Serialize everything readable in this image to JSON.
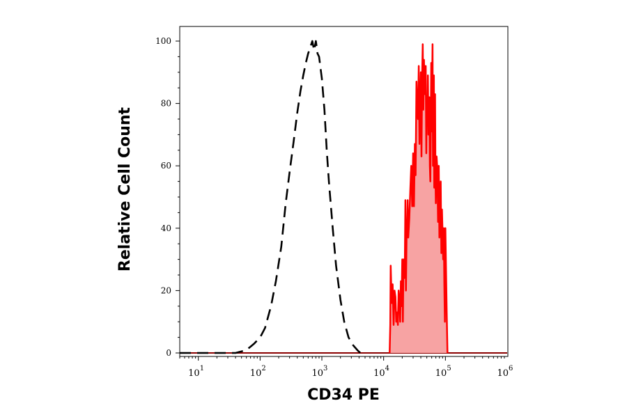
{
  "chart_data": {
    "type": "area",
    "xlabel": "CD34 PE",
    "ylabel": "Relative Cell Count",
    "x_scale": "log",
    "xlim": [
      5,
      1000000
    ],
    "ylim": [
      0,
      100
    ],
    "x_ticks": [
      {
        "value": 10,
        "base": "10",
        "exp": "1"
      },
      {
        "value": 100,
        "base": "10",
        "exp": "2"
      },
      {
        "value": 1000,
        "base": "10",
        "exp": "3"
      },
      {
        "value": 10000,
        "base": "10",
        "exp": "4"
      },
      {
        "value": 100000,
        "base": "10",
        "exp": "5"
      },
      {
        "value": 1000000,
        "base": "10",
        "exp": "6"
      }
    ],
    "y_ticks": [
      0,
      20,
      40,
      60,
      80,
      100
    ],
    "grid": false,
    "series": [
      {
        "style": "dashed-outline",
        "color": "#000000",
        "x": [
          5,
          40,
          50,
          60,
          70,
          80,
          100,
          120,
          150,
          180,
          220,
          260,
          300,
          350,
          400,
          450,
          500,
          550,
          600,
          650,
          700,
          750,
          800,
          850,
          900,
          1000,
          1100,
          1200,
          1300,
          1500,
          1700,
          2000,
          2300,
          2700,
          3200,
          3800,
          4200
        ],
        "y": [
          0,
          0,
          0.5,
          1,
          2,
          3,
          5,
          8,
          15,
          23,
          34,
          48,
          58,
          68,
          77,
          84,
          89,
          93,
          96,
          98,
          100,
          97,
          100,
          96,
          95,
          88,
          78,
          65,
          55,
          40,
          28,
          17,
          10,
          5,
          2.5,
          0.8,
          0
        ]
      },
      {
        "style": "filled",
        "color": "#ff0000",
        "fill": "#f7a3a3",
        "x": [
          12500,
          12800,
          13000,
          13500,
          14000,
          14500,
          15000,
          15500,
          16000,
          16500,
          17000,
          17500,
          18000,
          18500,
          19000,
          19500,
          20000,
          20500,
          21000,
          21500,
          22000,
          22500,
          23000,
          23500,
          24000,
          24500,
          25000,
          26000,
          27000,
          28000,
          29000,
          30000,
          31000,
          32000,
          33000,
          34000,
          35000,
          36000,
          37000,
          38000,
          39000,
          40000,
          41000,
          42000,
          43000,
          44000,
          45000,
          46000,
          47000,
          48000,
          49000,
          50000,
          51000,
          52000,
          53000,
          54000,
          55000,
          56000,
          57000,
          58000,
          59000,
          60000,
          61000,
          62000,
          63000,
          64000,
          65000,
          66000,
          67000,
          68000,
          69000,
          70000,
          72000,
          74000,
          76000,
          78000,
          80000,
          82000,
          84000,
          86000,
          88000,
          90000,
          92000,
          94000,
          96000,
          98000,
          100000,
          105000,
          108000
        ],
        "y": [
          0,
          9,
          28,
          16,
          22,
          9,
          20,
          18,
          10,
          13,
          9,
          20,
          17,
          10,
          23,
          15,
          30,
          10,
          30,
          24,
          25,
          49,
          20,
          37,
          41,
          49,
          37,
          43,
          52,
          60,
          47,
          64,
          47,
          67,
          57,
          87,
          78,
          75,
          92,
          67,
          80,
          90,
          63,
          88,
          99,
          78,
          94,
          83,
          85,
          92,
          64,
          80,
          73,
          89,
          70,
          75,
          82,
          60,
          55,
          74,
          93,
          71,
          87,
          99,
          60,
          67,
          89,
          53,
          62,
          83,
          55,
          48,
          63,
          59,
          42,
          60,
          37,
          49,
          55,
          32,
          46,
          38,
          30,
          40,
          22,
          10,
          40,
          13,
          0
        ]
      }
    ]
  }
}
